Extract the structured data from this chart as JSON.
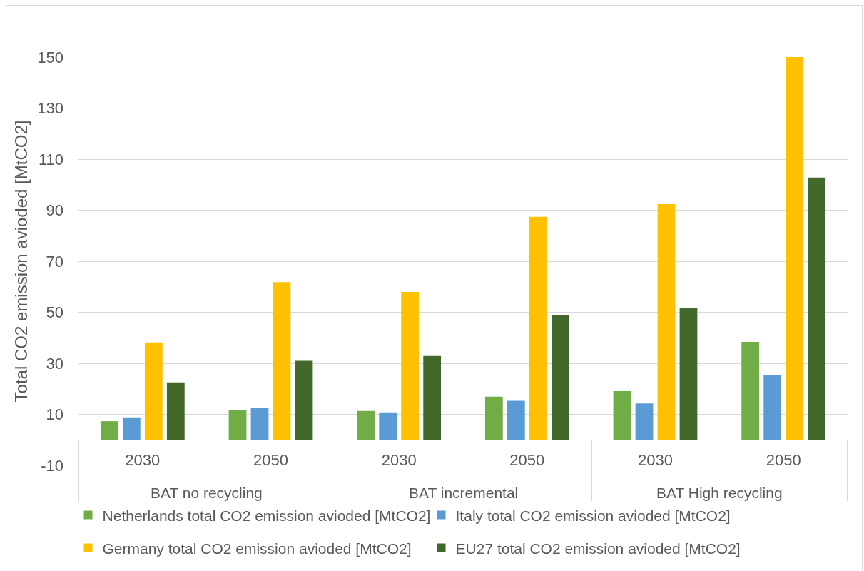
{
  "chart_data": {
    "type": "bar",
    "ylabel": "Total CO2 emission avioded [MtCO2]",
    "categories": [
      "2030",
      "2050",
      "2030",
      "2050",
      "2030",
      "2050"
    ],
    "annotations": [
      "BAT no recycling",
      "BAT incremental",
      "BAT High recycling"
    ],
    "series": [
      {
        "name": "Netherlands total CO2 emission avioded [MtCO2]",
        "color": "#70ad47",
        "values": [
          7.3,
          11.8,
          11.3,
          16.9,
          19.1,
          38.4
        ]
      },
      {
        "name": "Italy total CO2 emission avioded [MtCO2]",
        "color": "#5b9bd5",
        "values": [
          8.8,
          12.6,
          10.8,
          15.3,
          14.3,
          25.3
        ]
      },
      {
        "name": "Germany total CO2 emission avioded [MtCO2]",
        "color": "#ffc000",
        "values": [
          38.2,
          61.8,
          58.0,
          87.4,
          92.4,
          150
        ]
      },
      {
        "name": "EU27 total CO2 emission avioded [MtCO2]",
        "color": "#43682b",
        "values": [
          22.5,
          31.0,
          32.9,
          48.8,
          51.7,
          102.8
        ]
      }
    ],
    "ylim": [
      -10,
      150
    ],
    "yticks": [
      -10,
      10,
      30,
      50,
      70,
      90,
      110,
      130,
      150
    ],
    "grid": "y",
    "legend": "bottom"
  }
}
